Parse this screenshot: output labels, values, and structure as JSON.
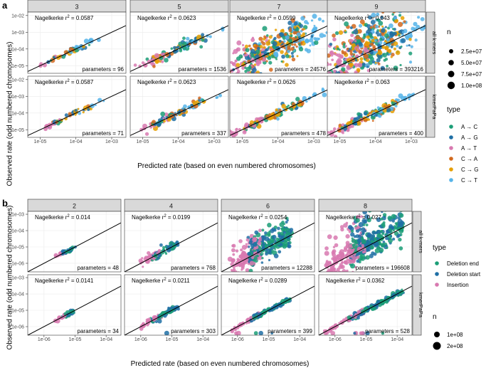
{
  "chart_data": [
    {
      "type": "scatter",
      "panel_label": "a",
      "column_headers": [
        "3",
        "5",
        "7",
        "9"
      ],
      "row_strips": [
        "all k-mers",
        "kmerPaPa"
      ],
      "xlabel": "Predicted rate (based on even numbered chromosomes)",
      "ylabel": "Observed rate (odd numbered chromosomes)",
      "xscale": "log",
      "yscale": "log",
      "xlim": [
        4.5e-06,
        0.0025
      ],
      "ylim": [
        3.5e-06,
        0.016
      ],
      "x_ticks": [
        "1e-05",
        "1e-04",
        "1e-03"
      ],
      "y_ticks": [
        "1e-05",
        "1e-04",
        "1e-03",
        "1e-02"
      ],
      "r2_prefix": "Nagelkerke",
      "r2_symbol": "r",
      "r2_exp": "2",
      "reference_line": "y = x",
      "panels": [
        {
          "col": "3",
          "row": "all k-mers",
          "r2": "= 0.0587",
          "parameters": "parameters = 96"
        },
        {
          "col": "5",
          "row": "all k-mers",
          "r2": "= 0.0623",
          "parameters": "parameters = 1536"
        },
        {
          "col": "7",
          "row": "all k-mers",
          "r2": "= 0.0599",
          "parameters": "parameters = 24576"
        },
        {
          "col": "9",
          "row": "all k-mers",
          "r2": "= 0.043",
          "parameters": "parameters = 393216"
        },
        {
          "col": "3",
          "row": "kmerPaPa",
          "r2": "= 0.0587",
          "parameters": "parameters = 71"
        },
        {
          "col": "5",
          "row": "kmerPaPa",
          "r2": "= 0.0623",
          "parameters": "parameters = 337"
        },
        {
          "col": "7",
          "row": "kmerPaPa",
          "r2": "= 0.0626",
          "parameters": "parameters = 478"
        },
        {
          "col": "9",
          "row": "kmerPaPa",
          "r2": "= 0.063",
          "parameters": "parameters = 400"
        }
      ],
      "legend_size": {
        "title": "n",
        "labels": [
          "2.5e+07",
          "5.0e+07",
          "7.5e+07",
          "1.0e+08"
        ]
      },
      "legend_type": {
        "title": "type",
        "entries": [
          {
            "label": "A → C",
            "color": "#1b9e77"
          },
          {
            "label": "A → G",
            "color": "#1f6fa5"
          },
          {
            "label": "A → T",
            "color": "#d879b0"
          },
          {
            "label": "C → A",
            "color": "#d2691e"
          },
          {
            "label": "C → G",
            "color": "#e69f00"
          },
          {
            "label": "C → T",
            "color": "#56b4e9"
          }
        ]
      }
    },
    {
      "type": "scatter",
      "panel_label": "b",
      "column_headers": [
        "2",
        "4",
        "6",
        "8"
      ],
      "row_strips": [
        "all k-mers",
        "kmerPaPa"
      ],
      "xlabel": "Predicted rate (based on even numbered chromosomes)",
      "ylabel": "Observed rate (odd numbered chromosomes)",
      "xscale": "log",
      "yscale": "log",
      "xlim": [
        3e-07,
        0.0003
      ],
      "ylim": [
        3e-07,
        0.0015
      ],
      "x_ticks": [
        "1e-06",
        "1e-05",
        "1e-04"
      ],
      "y_ticks": [
        "1e-06",
        "1e-05",
        "1e-04",
        "1e-03"
      ],
      "r2_prefix": "Nagelkerke",
      "r2_symbol": "r",
      "r2_exp": "2",
      "reference_line": "y = x",
      "panels": [
        {
          "col": "2",
          "row": "all k-mers",
          "r2": "= 0.014",
          "parameters": "parameters = 48"
        },
        {
          "col": "4",
          "row": "all k-mers",
          "r2": "= 0.0199",
          "parameters": "parameters = 768"
        },
        {
          "col": "6",
          "row": "all k-mers",
          "r2": "= 0.0254",
          "parameters": "parameters = 12288"
        },
        {
          "col": "8",
          "row": "all k-mers",
          "r2": "= 0.027",
          "parameters": "parameters = 196608"
        },
        {
          "col": "2",
          "row": "kmerPaPa",
          "r2": "= 0.0141",
          "parameters": "parameters = 34"
        },
        {
          "col": "4",
          "row": "kmerPaPa",
          "r2": "= 0.0211",
          "parameters": "parameters = 303"
        },
        {
          "col": "6",
          "row": "kmerPaPa",
          "r2": "= 0.0289",
          "parameters": "parameters = 399"
        },
        {
          "col": "8",
          "row": "kmerPaPa",
          "r2": "= 0.0362",
          "parameters": "parameters = 528"
        }
      ],
      "legend_type": {
        "title": "type",
        "entries": [
          {
            "label": "Deletion end",
            "color": "#1b9e77"
          },
          {
            "label": "Deletion start",
            "color": "#1f6fa5"
          },
          {
            "label": "Insertion",
            "color": "#d879b0"
          }
        ]
      },
      "legend_size": {
        "title": "n",
        "labels": [
          "1e+08",
          "2e+08"
        ]
      }
    }
  ]
}
